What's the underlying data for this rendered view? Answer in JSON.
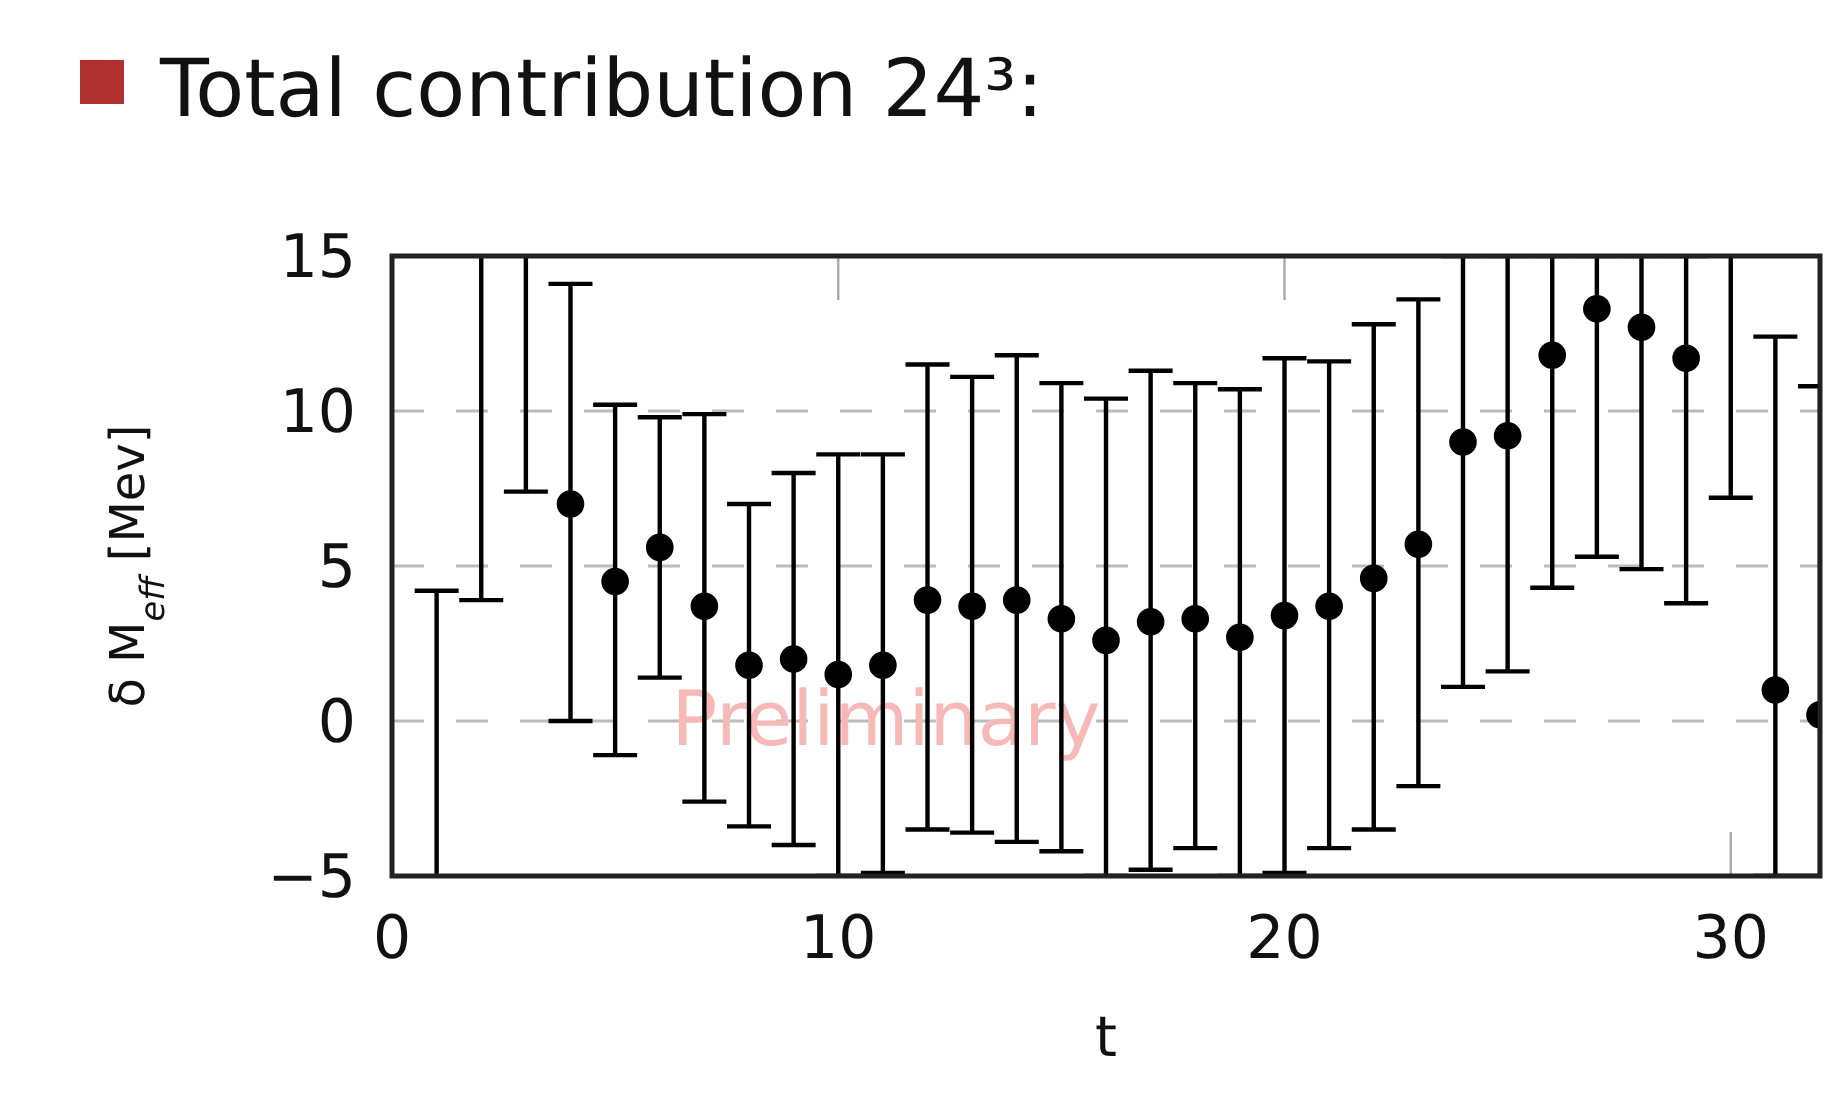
{
  "chart_data": {
    "type": "scatter",
    "title": "Total contribution 24³:",
    "xlabel": "t",
    "ylabel": "δ M$_{eff}$ [Mev]",
    "annotations": [
      "Preliminary"
    ],
    "x": [
      4,
      5,
      6,
      7,
      8,
      9,
      10,
      11,
      12,
      13,
      14,
      15,
      16,
      17,
      18,
      19,
      20,
      21,
      22,
      23,
      24,
      25,
      26,
      27,
      28,
      29,
      31,
      32
    ],
    "series": [
      {
        "color": "#000000",
        "values": [
          7.0,
          4.5,
          5.6,
          3.7,
          1.8,
          2.0,
          1.5,
          1.8,
          3.9,
          3.7,
          3.9,
          3.3,
          2.6,
          3.2,
          3.3,
          2.7,
          3.4,
          3.7,
          4.6,
          5.7,
          9.0,
          9.2,
          11.8,
          13.3,
          12.7,
          11.7,
          1.0,
          0.2
        ],
        "errors": [
          [
            0.0,
            14.1
          ],
          [
            -1.1,
            10.2
          ],
          [
            1.4,
            9.8
          ],
          [
            -2.6,
            9.9
          ],
          [
            -3.4,
            7.0
          ],
          [
            -4.0,
            8.0
          ],
          [
            -5,
            8.6
          ],
          [
            -4.9,
            8.6
          ],
          [
            -3.5,
            11.5
          ],
          [
            -3.6,
            11.1
          ],
          [
            -3.9,
            11.8
          ],
          [
            -4.2,
            10.9
          ],
          [
            -5,
            10.4
          ],
          [
            -4.8,
            11.3
          ],
          [
            -4.1,
            10.9
          ],
          [
            -5,
            10.7
          ],
          [
            -4.9,
            11.7
          ],
          [
            -4.1,
            11.6
          ],
          [
            -3.5,
            12.8
          ],
          [
            -2.1,
            13.6
          ],
          [
            1.1,
            15
          ],
          [
            1.6,
            15
          ],
          [
            4.3,
            15
          ],
          [
            5.3,
            15
          ],
          [
            4.9,
            15
          ],
          [
            3.8,
            15
          ],
          [
            -5,
            12.4
          ],
          [
            -5,
            10.8
          ]
        ]
      },
      {
        "type": "line",
        "marker": "none",
        "color": "#000000",
        "x": [
          1,
          1,
          null,
          2,
          2,
          null,
          3,
          3,
          null,
          30,
          30
        ],
        "values": [
          -5,
          4.2,
          null,
          3.9,
          15,
          null,
          7.4,
          15,
          null,
          7.2,
          15
        ]
      }
    ],
    "xlim": [
      0,
      32
    ],
    "xticks": [
      0,
      10,
      20,
      30
    ],
    "ylim": [
      -5,
      15
    ],
    "yticks": [
      {
        "value": -5,
        "label": "−5"
      },
      0,
      5,
      10,
      15
    ],
    "grid": "y",
    "marker": "circle"
  }
}
